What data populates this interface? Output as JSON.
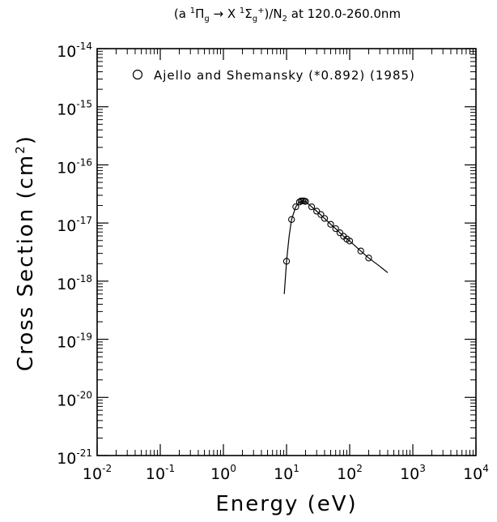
{
  "chart_data": {
    "type": "scatter",
    "title_prefix": "(a ",
    "title_sup1": "1",
    "title_pi": "Π",
    "title_sub_g1": "g",
    "title_arrow": " → X ",
    "title_sup2": "1",
    "title_sigma": "Σ",
    "title_sub_g2": "g",
    "title_sup_plus": "+",
    "title_mid": ")/N",
    "title_sub_2": "2",
    "title_suffix": " at 120.0-260.0nm",
    "xlabel": "Energy (eV)",
    "ylabel_text": "Cross Section (cm",
    "ylabel_sup": "2",
    "ylabel_close": ")",
    "x_scale": "log",
    "y_scale": "log",
    "xlim": [
      0.01,
      10000
    ],
    "ylim": [
      1e-21,
      1e-14
    ],
    "x_tick_labels": [
      {
        "base": "10",
        "exp": "-2"
      },
      {
        "base": "10",
        "exp": "-1"
      },
      {
        "base": "10",
        "exp": "0"
      },
      {
        "base": "10",
        "exp": "1"
      },
      {
        "base": "10",
        "exp": "2"
      },
      {
        "base": "10",
        "exp": "3"
      },
      {
        "base": "10",
        "exp": "4"
      }
    ],
    "y_tick_labels": [
      {
        "base": "10",
        "exp": "-14"
      },
      {
        "base": "10",
        "exp": "-15"
      },
      {
        "base": "10",
        "exp": "-16"
      },
      {
        "base": "10",
        "exp": "-17"
      },
      {
        "base": "10",
        "exp": "-18"
      },
      {
        "base": "10",
        "exp": "-19"
      },
      {
        "base": "10",
        "exp": "-20"
      },
      {
        "base": "10",
        "exp": "-21"
      }
    ],
    "legend": {
      "text": "Ajello and Shemansky (*0.892) (1985)",
      "placement": "top-right"
    },
    "series": [
      {
        "name": "Ajello and Shemansky (*0.892) (1985)",
        "marker": "open-circle",
        "x": [
          10,
          12,
          14,
          16,
          17,
          18,
          19,
          20,
          25,
          30,
          35,
          40,
          50,
          60,
          70,
          80,
          90,
          100,
          150,
          200
        ],
        "y": [
          2.2e-18,
          1.15e-17,
          1.9e-17,
          2.3e-17,
          2.4e-17,
          2.4e-17,
          2.4e-17,
          2.35e-17,
          1.9e-17,
          1.6e-17,
          1.4e-17,
          1.2e-17,
          9.5e-18,
          8e-18,
          6.8e-18,
          5.9e-18,
          5.3e-18,
          4.9e-18,
          3.3e-18,
          2.5e-18
        ]
      },
      {
        "marker": "line",
        "x": [
          9.2,
          10,
          11,
          12,
          14,
          16,
          18,
          20,
          25,
          30,
          40,
          50,
          60,
          70,
          80,
          100,
          150,
          200,
          300,
          400
        ],
        "y": [
          6e-19,
          2.2e-18,
          6e-18,
          1.15e-17,
          1.9e-17,
          2.3e-17,
          2.4e-17,
          2.35e-17,
          1.9e-17,
          1.6e-17,
          1.2e-17,
          9.5e-18,
          8e-18,
          6.8e-18,
          5.9e-18,
          4.9e-18,
          3.3e-18,
          2.5e-18,
          1.8e-18,
          1.4e-18
        ]
      }
    ],
    "grid": false
  }
}
